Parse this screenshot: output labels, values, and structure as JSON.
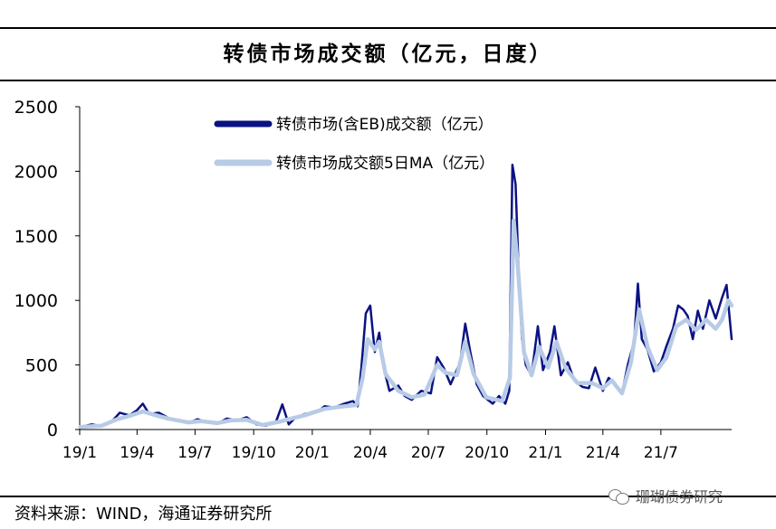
{
  "title": "转债市场成交额（亿元，日度）",
  "source": "资料来源：WIND，海通证券研究所",
  "watermark": "珊瑚债券研究",
  "chart_data": {
    "type": "line",
    "title": "转债市场成交额（亿元，日度）",
    "xlabel": "",
    "ylabel": "",
    "ylim": [
      0,
      2500
    ],
    "yticks": [
      "0",
      "500",
      "1000",
      "1500",
      "2000",
      "2500"
    ],
    "xticks": [
      "19/1",
      "19/4",
      "19/7",
      "19/10",
      "20/1",
      "20/4",
      "20/7",
      "20/10",
      "21/1",
      "21/4",
      "21/7"
    ],
    "xlim": [
      "2019-01-01",
      "2021-10-20"
    ],
    "grid": false,
    "legend_position": "top-center",
    "series": [
      {
        "name": "转债市场(含EB)成交额（亿元）",
        "color": "#0b1283",
        "points": [
          [
            "2019-01-02",
            20
          ],
          [
            "2019-01-20",
            40
          ],
          [
            "2019-02-05",
            25
          ],
          [
            "2019-02-20",
            60
          ],
          [
            "2019-03-05",
            130
          ],
          [
            "2019-03-20",
            110
          ],
          [
            "2019-04-01",
            150
          ],
          [
            "2019-04-10",
            200
          ],
          [
            "2019-04-20",
            120
          ],
          [
            "2019-05-05",
            130
          ],
          [
            "2019-05-20",
            90
          ],
          [
            "2019-06-05",
            70
          ],
          [
            "2019-06-20",
            50
          ],
          [
            "2019-07-05",
            80
          ],
          [
            "2019-07-20",
            55
          ],
          [
            "2019-08-05",
            45
          ],
          [
            "2019-08-20",
            85
          ],
          [
            "2019-09-05",
            70
          ],
          [
            "2019-09-20",
            95
          ],
          [
            "2019-10-05",
            40
          ],
          [
            "2019-10-20",
            30
          ],
          [
            "2019-11-05",
            60
          ],
          [
            "2019-11-15",
            195
          ],
          [
            "2019-11-25",
            40
          ],
          [
            "2019-12-05",
            90
          ],
          [
            "2019-12-20",
            120
          ],
          [
            "2020-01-10",
            140
          ],
          [
            "2020-01-20",
            180
          ],
          [
            "2020-02-05",
            170
          ],
          [
            "2020-02-20",
            200
          ],
          [
            "2020-03-05",
            220
          ],
          [
            "2020-03-12",
            180
          ],
          [
            "2020-03-18",
            480
          ],
          [
            "2020-03-25",
            900
          ],
          [
            "2020-04-01",
            960
          ],
          [
            "2020-04-08",
            600
          ],
          [
            "2020-04-15",
            750
          ],
          [
            "2020-04-22",
            480
          ],
          [
            "2020-05-01",
            300
          ],
          [
            "2020-05-15",
            340
          ],
          [
            "2020-05-25",
            260
          ],
          [
            "2020-06-05",
            230
          ],
          [
            "2020-06-20",
            300
          ],
          [
            "2020-07-05",
            280
          ],
          [
            "2020-07-15",
            560
          ],
          [
            "2020-07-25",
            480
          ],
          [
            "2020-08-05",
            350
          ],
          [
            "2020-08-20",
            520
          ],
          [
            "2020-08-28",
            820
          ],
          [
            "2020-09-05",
            600
          ],
          [
            "2020-09-15",
            350
          ],
          [
            "2020-09-25",
            260
          ],
          [
            "2020-10-10",
            200
          ],
          [
            "2020-10-20",
            260
          ],
          [
            "2020-10-30",
            200
          ],
          [
            "2020-11-05",
            300
          ],
          [
            "2020-11-10",
            2050
          ],
          [
            "2020-11-15",
            1900
          ],
          [
            "2020-11-20",
            1200
          ],
          [
            "2020-11-25",
            700
          ],
          [
            "2020-12-01",
            500
          ],
          [
            "2020-12-10",
            420
          ],
          [
            "2020-12-20",
            800
          ],
          [
            "2020-12-28",
            460
          ],
          [
            "2021-01-08",
            600
          ],
          [
            "2021-01-15",
            800
          ],
          [
            "2021-01-25",
            420
          ],
          [
            "2021-02-05",
            520
          ],
          [
            "2021-02-15",
            380
          ],
          [
            "2021-02-28",
            330
          ],
          [
            "2021-03-10",
            320
          ],
          [
            "2021-03-20",
            480
          ],
          [
            "2021-04-01",
            300
          ],
          [
            "2021-04-10",
            400
          ],
          [
            "2021-04-20",
            350
          ],
          [
            "2021-05-01",
            280
          ],
          [
            "2021-05-10",
            500
          ],
          [
            "2021-05-20",
            680
          ],
          [
            "2021-05-26",
            1130
          ],
          [
            "2021-06-01",
            700
          ],
          [
            "2021-06-10",
            620
          ],
          [
            "2021-06-20",
            450
          ],
          [
            "2021-07-01",
            520
          ],
          [
            "2021-07-10",
            650
          ],
          [
            "2021-07-20",
            780
          ],
          [
            "2021-07-28",
            960
          ],
          [
            "2021-08-05",
            930
          ],
          [
            "2021-08-12",
            880
          ],
          [
            "2021-08-20",
            700
          ],
          [
            "2021-08-28",
            920
          ],
          [
            "2021-09-05",
            780
          ],
          [
            "2021-09-15",
            1000
          ],
          [
            "2021-09-25",
            860
          ],
          [
            "2021-10-05",
            1020
          ],
          [
            "2021-10-12",
            1120
          ],
          [
            "2021-10-20",
            700
          ]
        ]
      },
      {
        "name": "转债市场成交额5日MA（亿元）",
        "color": "#b8cbe6",
        "points": [
          [
            "2019-01-02",
            20
          ],
          [
            "2019-02-05",
            30
          ],
          [
            "2019-03-01",
            80
          ],
          [
            "2019-03-20",
            105
          ],
          [
            "2019-04-10",
            140
          ],
          [
            "2019-05-01",
            110
          ],
          [
            "2019-05-20",
            85
          ],
          [
            "2019-06-20",
            55
          ],
          [
            "2019-07-10",
            65
          ],
          [
            "2019-08-05",
            50
          ],
          [
            "2019-08-25",
            70
          ],
          [
            "2019-09-20",
            75
          ],
          [
            "2019-10-15",
            35
          ],
          [
            "2019-11-10",
            60
          ],
          [
            "2019-11-25",
            80
          ],
          [
            "2019-12-20",
            110
          ],
          [
            "2020-01-20",
            160
          ],
          [
            "2020-02-20",
            180
          ],
          [
            "2020-03-10",
            190
          ],
          [
            "2020-03-20",
            400
          ],
          [
            "2020-03-28",
            700
          ],
          [
            "2020-04-08",
            620
          ],
          [
            "2020-04-15",
            680
          ],
          [
            "2020-04-25",
            430
          ],
          [
            "2020-05-15",
            300
          ],
          [
            "2020-06-05",
            250
          ],
          [
            "2020-06-25",
            270
          ],
          [
            "2020-07-15",
            500
          ],
          [
            "2020-07-28",
            440
          ],
          [
            "2020-08-15",
            420
          ],
          [
            "2020-08-28",
            680
          ],
          [
            "2020-09-10",
            430
          ],
          [
            "2020-09-30",
            250
          ],
          [
            "2020-10-25",
            220
          ],
          [
            "2020-11-06",
            400
          ],
          [
            "2020-11-12",
            1620
          ],
          [
            "2020-11-18",
            1300
          ],
          [
            "2020-11-28",
            600
          ],
          [
            "2020-12-10",
            420
          ],
          [
            "2020-12-22",
            640
          ],
          [
            "2021-01-05",
            480
          ],
          [
            "2021-01-18",
            680
          ],
          [
            "2021-02-01",
            480
          ],
          [
            "2021-02-20",
            360
          ],
          [
            "2021-03-15",
            360
          ],
          [
            "2021-04-01",
            320
          ],
          [
            "2021-04-15",
            380
          ],
          [
            "2021-05-01",
            280
          ],
          [
            "2021-05-15",
            520
          ],
          [
            "2021-05-28",
            930
          ],
          [
            "2021-06-10",
            640
          ],
          [
            "2021-06-25",
            460
          ],
          [
            "2021-07-10",
            560
          ],
          [
            "2021-07-25",
            800
          ],
          [
            "2021-08-10",
            850
          ],
          [
            "2021-08-25",
            770
          ],
          [
            "2021-09-10",
            850
          ],
          [
            "2021-09-25",
            780
          ],
          [
            "2021-10-05",
            850
          ],
          [
            "2021-10-15",
            1000
          ],
          [
            "2021-10-20",
            960
          ]
        ]
      }
    ]
  }
}
